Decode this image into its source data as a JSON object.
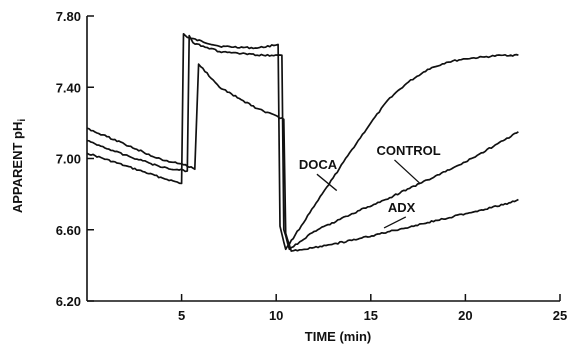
{
  "chart_data": {
    "type": "line",
    "title": "",
    "xlabel": "TIME (min)",
    "ylabel": "APPARENT pH",
    "ylabel_subscript": "i",
    "xlim": [
      0,
      25
    ],
    "ylim": [
      6.2,
      7.8
    ],
    "xticks": [
      5,
      10,
      15,
      20,
      25
    ],
    "yticks": [
      6.2,
      6.6,
      7.0,
      7.4,
      7.8
    ],
    "xtick_labels": [
      "5",
      "10",
      "15",
      "20",
      "25"
    ],
    "ytick_labels": [
      "6.20",
      "6.60",
      "7.00",
      "7.40",
      "7.80"
    ],
    "grid": false,
    "legend": "none",
    "line_color": "#111111",
    "series": [
      {
        "name": "DOCA",
        "x": [
          0,
          2,
          4,
          5.0,
          5.1,
          5.3,
          7,
          9,
          10.1,
          10.2,
          10.5,
          11,
          12,
          13,
          14,
          15,
          16,
          17,
          18,
          19,
          20,
          21,
          22,
          22.8
        ],
        "y": [
          7.03,
          6.96,
          6.89,
          6.86,
          7.7,
          7.68,
          7.63,
          7.62,
          7.64,
          6.62,
          6.49,
          6.57,
          6.73,
          6.89,
          7.05,
          7.2,
          7.34,
          7.43,
          7.5,
          7.54,
          7.56,
          7.57,
          7.58,
          7.58
        ]
      },
      {
        "name": "CONTROL",
        "x": [
          0,
          2,
          4,
          5.3,
          5.4,
          5.6,
          7,
          9,
          10.3,
          10.4,
          10.7,
          12,
          14,
          16,
          18,
          20,
          22,
          22.8
        ],
        "y": [
          7.1,
          7.02,
          6.95,
          6.93,
          7.69,
          7.65,
          7.6,
          7.58,
          7.58,
          6.6,
          6.49,
          6.59,
          6.69,
          6.78,
          6.88,
          6.98,
          7.1,
          7.15
        ]
      },
      {
        "name": "ADX",
        "x": [
          0,
          2,
          4,
          5.0,
          5.7,
          5.9,
          7,
          9,
          10.4,
          10.5,
          10.8,
          12,
          14,
          16,
          18,
          20,
          22,
          22.8
        ],
        "y": [
          7.17,
          7.08,
          6.99,
          6.97,
          6.94,
          7.53,
          7.4,
          7.28,
          7.22,
          6.58,
          6.48,
          6.5,
          6.54,
          6.59,
          6.64,
          6.69,
          6.74,
          6.77
        ]
      }
    ],
    "annotations": [
      {
        "text": "DOCA",
        "x": 11.2,
        "y": 6.94,
        "target_x": 13.2,
        "target_y": 6.82
      },
      {
        "text": "CONTROL",
        "x": 15.3,
        "y": 7.02,
        "target_x": 17.6,
        "target_y": 6.86
      },
      {
        "text": "ADX",
        "x": 15.9,
        "y": 6.7,
        "target_x": 15.7,
        "target_y": 6.61
      }
    ]
  }
}
